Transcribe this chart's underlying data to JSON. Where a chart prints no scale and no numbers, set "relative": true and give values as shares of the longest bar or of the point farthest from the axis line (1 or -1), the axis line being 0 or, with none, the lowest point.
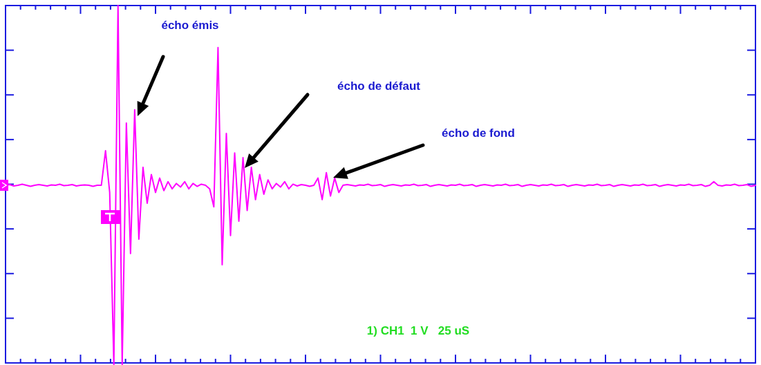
{
  "chart_data": {
    "type": "line",
    "relative": true,
    "categories": [
      null,
      null,
      null,
      null,
      null,
      null,
      null,
      null,
      null,
      null,
      null,
      null,
      null,
      null,
      null,
      null,
      null,
      null,
      null,
      null,
      null,
      null,
      null,
      null,
      null,
      null,
      null,
      null,
      null,
      null,
      null,
      null,
      null,
      null,
      null,
      null,
      null,
      null,
      null,
      null,
      null,
      null,
      null,
      null,
      null,
      null,
      null,
      null,
      null,
      null,
      null,
      null,
      null,
      null,
      null,
      null,
      null,
      null,
      null,
      null,
      null,
      null,
      null,
      null,
      null,
      null,
      null,
      null,
      null,
      null,
      null,
      null,
      null,
      null,
      null,
      null,
      null,
      null,
      null,
      null,
      null,
      null,
      null,
      null,
      null,
      null,
      null,
      null,
      null,
      null,
      null,
      null,
      null,
      null,
      null,
      null,
      null,
      null,
      null,
      null,
      null,
      null,
      null,
      null,
      null,
      null,
      null,
      null,
      null,
      null,
      null,
      null,
      null,
      null,
      null,
      null,
      null,
      null,
      null,
      null,
      null,
      null,
      null,
      null,
      null,
      null,
      null,
      null,
      null,
      null,
      null,
      null,
      null,
      null,
      null,
      null,
      null,
      null,
      null,
      null,
      null,
      null,
      null,
      null,
      null,
      null,
      null,
      null,
      null,
      null,
      null,
      null,
      null,
      null,
      null,
      null,
      null,
      null,
      null,
      null,
      null,
      null,
      null,
      null,
      null,
      null,
      null,
      null,
      null,
      null,
      null,
      null,
      null,
      null,
      null,
      null,
      null,
      null,
      null,
      null,
      null
    ],
    "series": [
      {
        "color": "#ff00ff",
        "values": [
          0.5,
          0.502,
          0.498,
          0.5,
          0.503,
          0.5,
          0.497,
          0.5,
          0.502,
          0.5,
          0.498,
          0.501,
          0.5,
          0.503,
          0.499,
          0.5,
          0.502,
          0.498,
          0.5,
          0.501,
          0.5,
          0.497,
          0.5,
          0.5,
          0.596,
          0.48,
          0,
          1,
          0,
          0.673,
          0.31,
          0.71,
          0.35,
          0.55,
          0.45,
          0.53,
          0.48,
          0.52,
          0.485,
          0.51,
          0.49,
          0.505,
          0.495,
          0.51,
          0.49,
          0.505,
          0.497,
          0.503,
          0.5,
          0.49,
          0.44,
          0.883,
          0.279,
          0.644,
          0.36,
          0.59,
          0.4,
          0.577,
          0.43,
          0.55,
          0.46,
          0.53,
          0.475,
          0.515,
          0.49,
          0.505,
          0.495,
          0.51,
          0.49,
          0.503,
          0.498,
          0.502,
          0.5,
          0.497,
          0.5,
          0.52,
          0.46,
          0.535,
          0.47,
          0.52,
          0.48,
          0.5,
          0.502,
          0.5,
          0.498,
          0.501,
          0.5,
          0.503,
          0.499,
          0.5,
          0.502,
          0.497,
          0.5,
          0.502,
          0.5,
          0.498,
          0.501,
          0.5,
          0.503,
          0.499,
          0.5,
          0.502,
          0.497,
          0.5,
          0.502,
          0.5,
          0.498,
          0.501,
          0.5,
          0.503,
          0.499,
          0.5,
          0.502,
          0.497,
          0.5,
          0.502,
          0.5,
          0.498,
          0.501,
          0.5,
          0.503,
          0.499,
          0.5,
          0.502,
          0.497,
          0.5,
          0.502,
          0.5,
          0.498,
          0.501,
          0.5,
          0.503,
          0.499,
          0.5,
          0.502,
          0.497,
          0.5,
          0.502,
          0.5,
          0.498,
          0.501,
          0.5,
          0.503,
          0.499,
          0.5,
          0.502,
          0.497,
          0.5,
          0.502,
          0.5,
          0.498,
          0.501,
          0.5,
          0.503,
          0.499,
          0.5,
          0.502,
          0.497,
          0.5,
          0.502,
          0.5,
          0.498,
          0.501,
          0.5,
          0.503,
          0.499,
          0.5,
          0.502,
          0.497,
          0.5,
          0.51,
          0.5,
          0.498,
          0.501,
          0.5,
          0.503,
          0.499,
          0.5,
          0.502,
          0.497,
          0.5
        ]
      }
    ],
    "annotations": [
      "écho émis",
      "écho de défaut",
      "écho de fond",
      "1) CH1  1 V   25 uS"
    ]
  }
}
